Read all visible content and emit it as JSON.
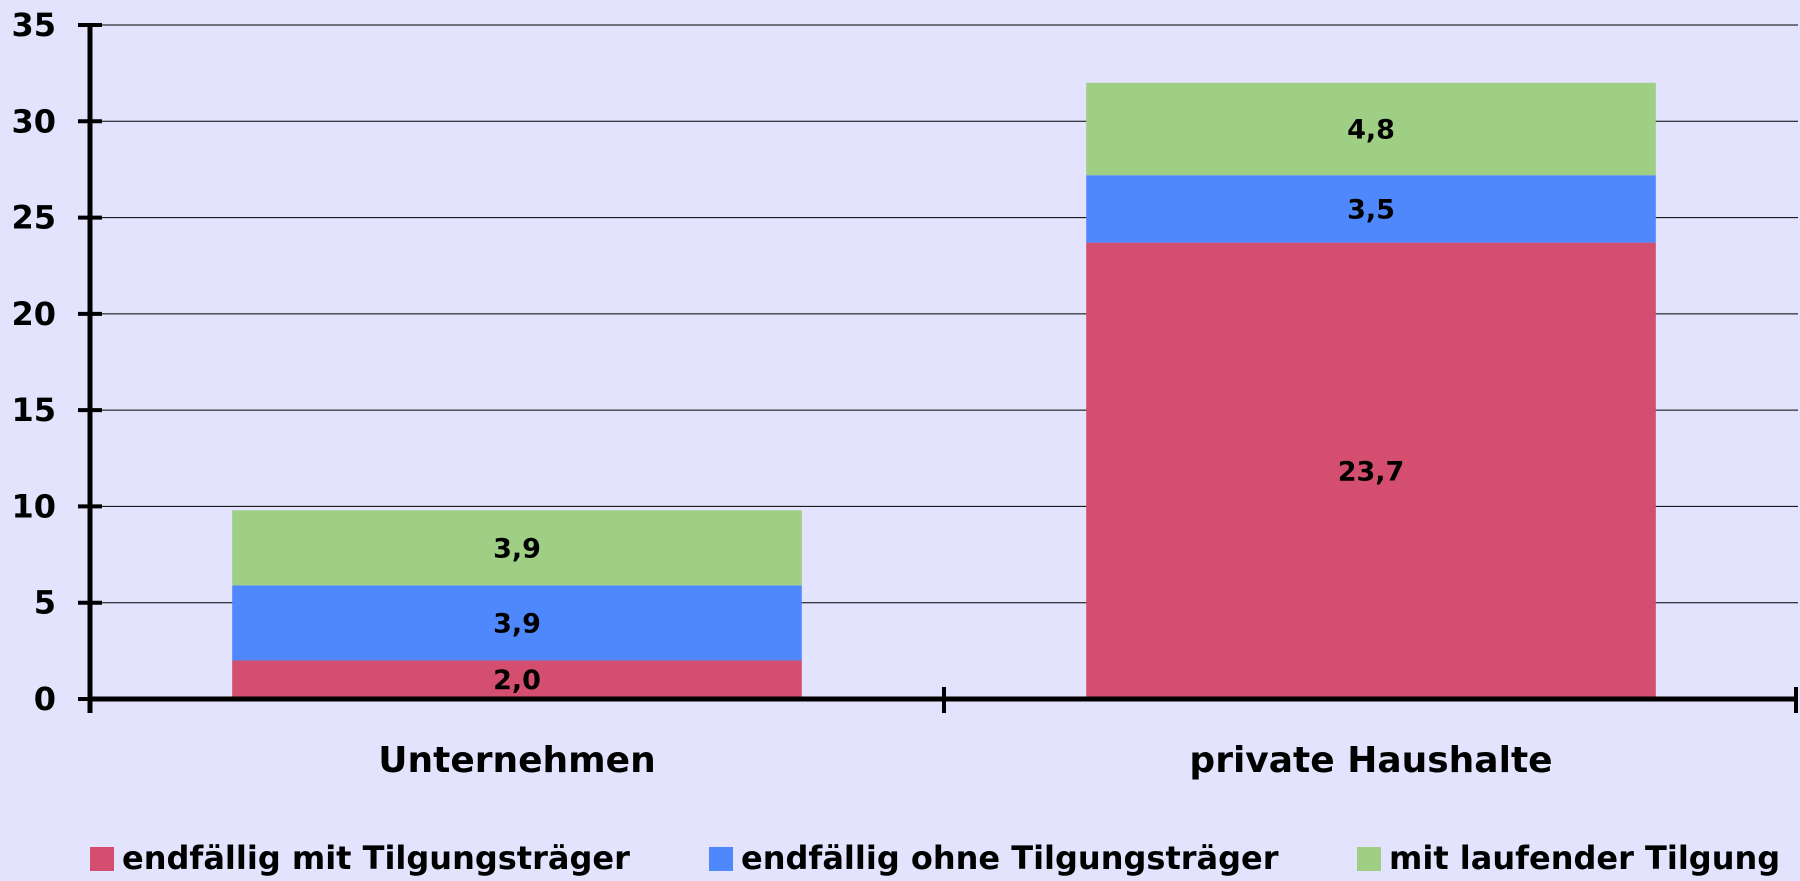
{
  "chart_data": {
    "type": "stacked_bar",
    "categories": [
      "Unternehmen",
      "private Haushalte"
    ],
    "series": [
      {
        "name": "endfällig mit Tilgungsträger",
        "color": "#d44e70",
        "values": [
          2.0,
          23.7
        ],
        "value_labels": [
          "2,0",
          "23,7"
        ]
      },
      {
        "name": "endfällig ohne Tilgungsträger",
        "color": "#4f88fd",
        "values": [
          3.9,
          3.5
        ],
        "value_labels": [
          "3,9",
          "3,5"
        ]
      },
      {
        "name": "mit laufender Tilgung",
        "color": "#9ecf85",
        "values": [
          3.9,
          4.8
        ],
        "value_labels": [
          "3,9",
          "4,8"
        ]
      }
    ],
    "ylim": [
      0,
      35
    ],
    "yticks": [
      0,
      5,
      10,
      15,
      20,
      25,
      30,
      35
    ],
    "grid": true,
    "legend": "bottom"
  }
}
